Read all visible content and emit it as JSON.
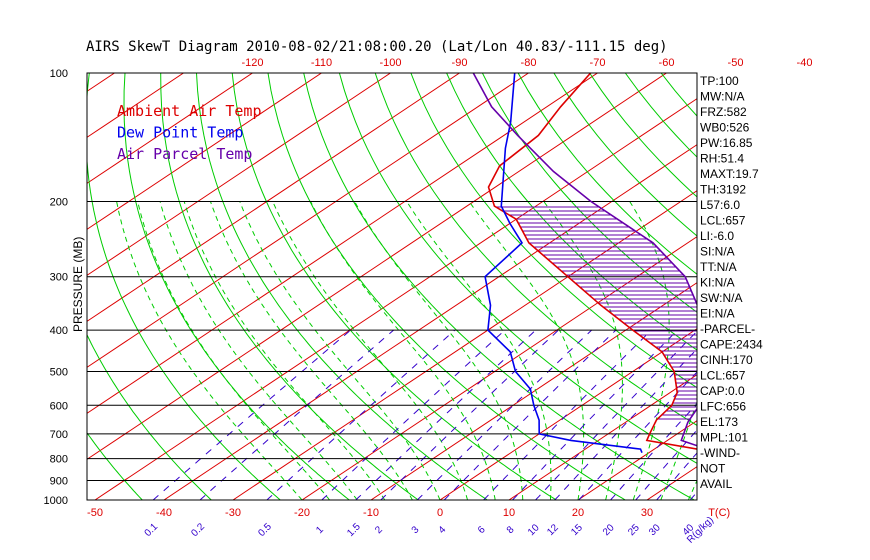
{
  "chart_data": {
    "type": "line",
    "title": "AIRS SkewT Diagram 2010-08-02/21:08:00.20 (Lat/Lon 40.83/-111.15 deg)",
    "ylabel": "PRESSURE (MB)",
    "xlabel_bottom": "T(C)",
    "mixing_ratio_unit": "R(g/kg)",
    "y_scale": "log",
    "pressure_range": [
      1000,
      100
    ],
    "bottom_temp_range": [
      -50,
      40
    ],
    "pressure_ticks": [
      "100",
      "200",
      "300",
      "400",
      "500",
      "600",
      "700",
      "800",
      "900",
      "1000"
    ],
    "pressure_tick_values": [
      100,
      200,
      300,
      400,
      500,
      600,
      700,
      800,
      900,
      1000
    ],
    "top_temp_ticks": [
      "-120",
      "-110",
      "-100",
      "-90",
      "-80",
      "-70",
      "-60",
      "-50",
      "-40"
    ],
    "top_temp_values": [
      -120,
      -110,
      -100,
      -90,
      -80,
      -70,
      -60,
      -50,
      -40
    ],
    "bottom_temp_ticks": [
      "-50",
      "-40",
      "-30",
      "-20",
      "-10",
      "0",
      "10",
      "20",
      "30",
      "T(C)"
    ],
    "bottom_temp_values": [
      -50,
      -40,
      -30,
      -20,
      -10,
      0,
      10,
      20,
      30
    ],
    "mixing_ratio_labels": [
      "0.1",
      "0.2",
      "0.5",
      "1",
      "1.5",
      "2",
      "3",
      "4",
      "6",
      "8",
      "10",
      "12",
      "15",
      "20",
      "25",
      "30",
      "40",
      "R(g/kg)"
    ],
    "mixing_ratio_values": [
      0.1,
      0.2,
      0.5,
      1,
      1.5,
      2,
      3,
      4,
      6,
      8,
      10,
      12,
      15,
      20,
      25,
      30,
      40
    ],
    "legend": [
      {
        "name": "Ambient Air Temp",
        "color": "#dd0000"
      },
      {
        "name": "Dew Point Temp",
        "color": "#0000ee"
      },
      {
        "name": "Air Parcel Temp",
        "color": "#6600aa"
      }
    ],
    "series": [
      {
        "key": "ambient",
        "points": [
          [
            775,
            30
          ],
          [
            725,
            17
          ],
          [
            700,
            16
          ],
          [
            650,
            14
          ],
          [
            600,
            13
          ],
          [
            560,
            11
          ],
          [
            500,
            6
          ],
          [
            450,
            0
          ],
          [
            400,
            -9
          ],
          [
            350,
            -19
          ],
          [
            300,
            -30
          ],
          [
            250,
            -43
          ],
          [
            220,
            -50
          ],
          [
            205,
            -56
          ],
          [
            185,
            -61
          ],
          [
            165,
            -64
          ],
          [
            140,
            -65
          ],
          [
            120,
            -68
          ],
          [
            100,
            -71
          ]
        ]
      },
      {
        "key": "dewpoint",
        "points": [
          [
            775,
            19
          ],
          [
            760,
            18
          ],
          [
            725,
            6
          ],
          [
            700,
            0
          ],
          [
            650,
            -3
          ],
          [
            600,
            -7
          ],
          [
            550,
            -11
          ],
          [
            500,
            -17
          ],
          [
            450,
            -22
          ],
          [
            400,
            -30
          ],
          [
            350,
            -35
          ],
          [
            300,
            -42
          ],
          [
            250,
            -44
          ],
          [
            225,
            -50
          ],
          [
            205,
            -55
          ],
          [
            180,
            -60
          ],
          [
            150,
            -67
          ],
          [
            130,
            -72
          ],
          [
            100,
            -82
          ]
        ]
      },
      {
        "key": "parcel",
        "points": [
          [
            775,
            30
          ],
          [
            725,
            22
          ],
          [
            657,
            19
          ],
          [
            600,
            17
          ],
          [
            550,
            15
          ],
          [
            500,
            12
          ],
          [
            450,
            8
          ],
          [
            400,
            3
          ],
          [
            350,
            -5
          ],
          [
            300,
            -13
          ],
          [
            250,
            -25
          ],
          [
            200,
            -43
          ],
          [
            170,
            -55
          ],
          [
            140,
            -68
          ],
          [
            120,
            -78
          ],
          [
            100,
            -88
          ]
        ]
      }
    ],
    "cape_shading": {
      "from_pressure": 657,
      "to_pressure": 205
    },
    "indices": [
      "TP:100",
      "MW:N/A",
      "FRZ:582",
      "WB0:526",
      "PW:16.85",
      "RH:51.4",
      "MAXT:19.7",
      "TH:3192",
      "L57:6.0",
      "LCL:657",
      "LI:-6.0",
      "SI:N/A",
      "TT:N/A",
      "KI:N/A",
      "SW:N/A",
      "EI:N/A",
      "-PARCEL-",
      "CAPE:2434",
      "CINH:170",
      "LCL:657",
      "CAP:0.0",
      "LFC:656",
      "EL:173",
      "MPL:101",
      "-WIND-",
      "NOT",
      "AVAIL"
    ],
    "colors": {
      "isotherm": "#dd0000",
      "dry_adiabat": "#00cc00",
      "moist_adiabat": "#00cc00",
      "mixing_ratio": "#3300cc",
      "isobar": "#000000",
      "ambient": "#dd0000",
      "dewpoint": "#0000ee",
      "parcel": "#6600aa",
      "cape_hatch": "#6600aa"
    }
  }
}
